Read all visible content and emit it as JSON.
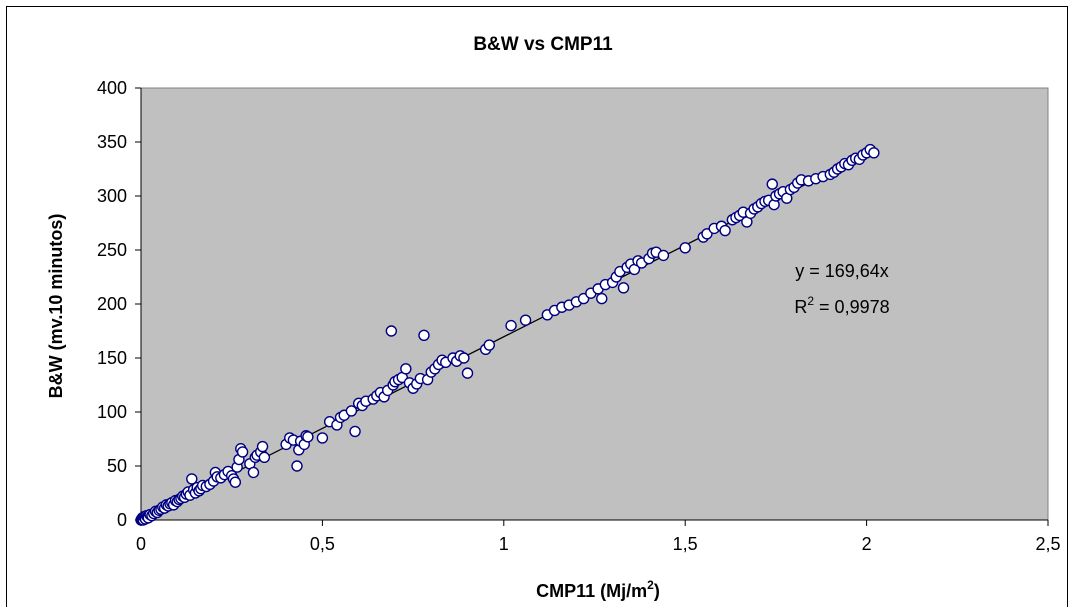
{
  "chart_data": {
    "type": "scatter",
    "title": "B&W vs CMP11",
    "xlabel": {
      "main": "CMP11 (Mj/m",
      "sup": "2",
      "tail": ")"
    },
    "ylabel": "B&W (mv.10 minutos)",
    "xlim": [
      0,
      2.5
    ],
    "ylim": [
      0,
      400
    ],
    "x_ticks": [
      "0",
      "0,5",
      "1",
      "1,5",
      "2",
      "2,5"
    ],
    "x_tick_values": [
      0,
      0.5,
      1,
      1.5,
      2,
      2.5
    ],
    "y_ticks": [
      "0",
      "50",
      "100",
      "150",
      "200",
      "250",
      "300",
      "350",
      "400"
    ],
    "y_tick_values": [
      0,
      50,
      100,
      150,
      200,
      250,
      300,
      350,
      400
    ],
    "grid": false,
    "plot_background": "#c0c0c0",
    "marker_color": "#000080",
    "marker_fill": "#ffffff",
    "trendline": {
      "slope": 169.64,
      "intercept": 0,
      "x_range": [
        0,
        2.02
      ],
      "color": "#000000"
    },
    "annotations": {
      "equation": "y = 169,64x",
      "r2_label": "R",
      "r2_sup": "2",
      "r2_value": " = 0,9978"
    },
    "points": [
      [
        0.0,
        0
      ],
      [
        0.002,
        1
      ],
      [
        0.004,
        2
      ],
      [
        0.006,
        0
      ],
      [
        0.008,
        3
      ],
      [
        0.01,
        2
      ],
      [
        0.012,
        1
      ],
      [
        0.015,
        4
      ],
      [
        0.018,
        3
      ],
      [
        0.02,
        2
      ],
      [
        0.025,
        5
      ],
      [
        0.03,
        4
      ],
      [
        0.035,
        6
      ],
      [
        0.04,
        8
      ],
      [
        0.045,
        7
      ],
      [
        0.05,
        9
      ],
      [
        0.055,
        10
      ],
      [
        0.06,
        12
      ],
      [
        0.065,
        11
      ],
      [
        0.07,
        14
      ],
      [
        0.075,
        13
      ],
      [
        0.08,
        15
      ],
      [
        0.085,
        16
      ],
      [
        0.09,
        14
      ],
      [
        0.095,
        18
      ],
      [
        0.1,
        17
      ],
      [
        0.105,
        19
      ],
      [
        0.11,
        20
      ],
      [
        0.115,
        22
      ],
      [
        0.12,
        21
      ],
      [
        0.125,
        24
      ],
      [
        0.13,
        26
      ],
      [
        0.135,
        23
      ],
      [
        0.14,
        38
      ],
      [
        0.145,
        28
      ],
      [
        0.15,
        25
      ],
      [
        0.155,
        30
      ],
      [
        0.16,
        27
      ],
      [
        0.165,
        29
      ],
      [
        0.17,
        32
      ],
      [
        0.18,
        31
      ],
      [
        0.19,
        33
      ],
      [
        0.2,
        36
      ],
      [
        0.205,
        44
      ],
      [
        0.21,
        40
      ],
      [
        0.22,
        39
      ],
      [
        0.23,
        42
      ],
      [
        0.24,
        45
      ],
      [
        0.25,
        41
      ],
      [
        0.255,
        38
      ],
      [
        0.26,
        35
      ],
      [
        0.265,
        49
      ],
      [
        0.27,
        56
      ],
      [
        0.275,
        66
      ],
      [
        0.28,
        63
      ],
      [
        0.3,
        52
      ],
      [
        0.31,
        44
      ],
      [
        0.315,
        58
      ],
      [
        0.32,
        60
      ],
      [
        0.33,
        63
      ],
      [
        0.335,
        68
      ],
      [
        0.34,
        58
      ],
      [
        0.4,
        70
      ],
      [
        0.41,
        76
      ],
      [
        0.42,
        74
      ],
      [
        0.43,
        50
      ],
      [
        0.435,
        65
      ],
      [
        0.44,
        73
      ],
      [
        0.45,
        70
      ],
      [
        0.455,
        78
      ],
      [
        0.46,
        77
      ],
      [
        0.5,
        76
      ],
      [
        0.52,
        91
      ],
      [
        0.54,
        88
      ],
      [
        0.55,
        95
      ],
      [
        0.56,
        97
      ],
      [
        0.58,
        101
      ],
      [
        0.59,
        82
      ],
      [
        0.6,
        108
      ],
      [
        0.61,
        106
      ],
      [
        0.62,
        110
      ],
      [
        0.64,
        112
      ],
      [
        0.65,
        115
      ],
      [
        0.66,
        118
      ],
      [
        0.67,
        114
      ],
      [
        0.68,
        120
      ],
      [
        0.69,
        175
      ],
      [
        0.695,
        125
      ],
      [
        0.7,
        128
      ],
      [
        0.71,
        130
      ],
      [
        0.72,
        132
      ],
      [
        0.73,
        140
      ],
      [
        0.74,
        127
      ],
      [
        0.75,
        122
      ],
      [
        0.76,
        126
      ],
      [
        0.77,
        131
      ],
      [
        0.78,
        171
      ],
      [
        0.79,
        130
      ],
      [
        0.8,
        137
      ],
      [
        0.81,
        140
      ],
      [
        0.82,
        144
      ],
      [
        0.83,
        148
      ],
      [
        0.84,
        146
      ],
      [
        0.86,
        150
      ],
      [
        0.87,
        147
      ],
      [
        0.88,
        152
      ],
      [
        0.89,
        150
      ],
      [
        0.9,
        136
      ],
      [
        0.95,
        158
      ],
      [
        0.96,
        162
      ],
      [
        1.02,
        180
      ],
      [
        1.06,
        185
      ],
      [
        1.12,
        190
      ],
      [
        1.14,
        194
      ],
      [
        1.16,
        197
      ],
      [
        1.18,
        199
      ],
      [
        1.2,
        202
      ],
      [
        1.22,
        205
      ],
      [
        1.24,
        210
      ],
      [
        1.26,
        214
      ],
      [
        1.27,
        205
      ],
      [
        1.28,
        218
      ],
      [
        1.3,
        220
      ],
      [
        1.31,
        225
      ],
      [
        1.32,
        230
      ],
      [
        1.33,
        215
      ],
      [
        1.34,
        234
      ],
      [
        1.35,
        237
      ],
      [
        1.36,
        232
      ],
      [
        1.37,
        240
      ],
      [
        1.38,
        238
      ],
      [
        1.4,
        242
      ],
      [
        1.41,
        247
      ],
      [
        1.42,
        248
      ],
      [
        1.44,
        245
      ],
      [
        1.5,
        252
      ],
      [
        1.55,
        262
      ],
      [
        1.56,
        265
      ],
      [
        1.58,
        270
      ],
      [
        1.6,
        272
      ],
      [
        1.61,
        268
      ],
      [
        1.63,
        278
      ],
      [
        1.64,
        280
      ],
      [
        1.65,
        282
      ],
      [
        1.66,
        285
      ],
      [
        1.67,
        276
      ],
      [
        1.68,
        284
      ],
      [
        1.69,
        288
      ],
      [
        1.7,
        290
      ],
      [
        1.71,
        293
      ],
      [
        1.72,
        295
      ],
      [
        1.73,
        296
      ],
      [
        1.74,
        311
      ],
      [
        1.745,
        292
      ],
      [
        1.75,
        300
      ],
      [
        1.76,
        302
      ],
      [
        1.77,
        304
      ],
      [
        1.78,
        298
      ],
      [
        1.79,
        306
      ],
      [
        1.8,
        308
      ],
      [
        1.81,
        312
      ],
      [
        1.82,
        315
      ],
      [
        1.84,
        314
      ],
      [
        1.86,
        316
      ],
      [
        1.88,
        318
      ],
      [
        1.9,
        320
      ],
      [
        1.91,
        322
      ],
      [
        1.92,
        325
      ],
      [
        1.93,
        327
      ],
      [
        1.94,
        330
      ],
      [
        1.95,
        329
      ],
      [
        1.96,
        333
      ],
      [
        1.97,
        335
      ],
      [
        1.98,
        334
      ],
      [
        1.99,
        338
      ],
      [
        2.0,
        340
      ],
      [
        2.01,
        343
      ],
      [
        2.02,
        340
      ]
    ]
  }
}
